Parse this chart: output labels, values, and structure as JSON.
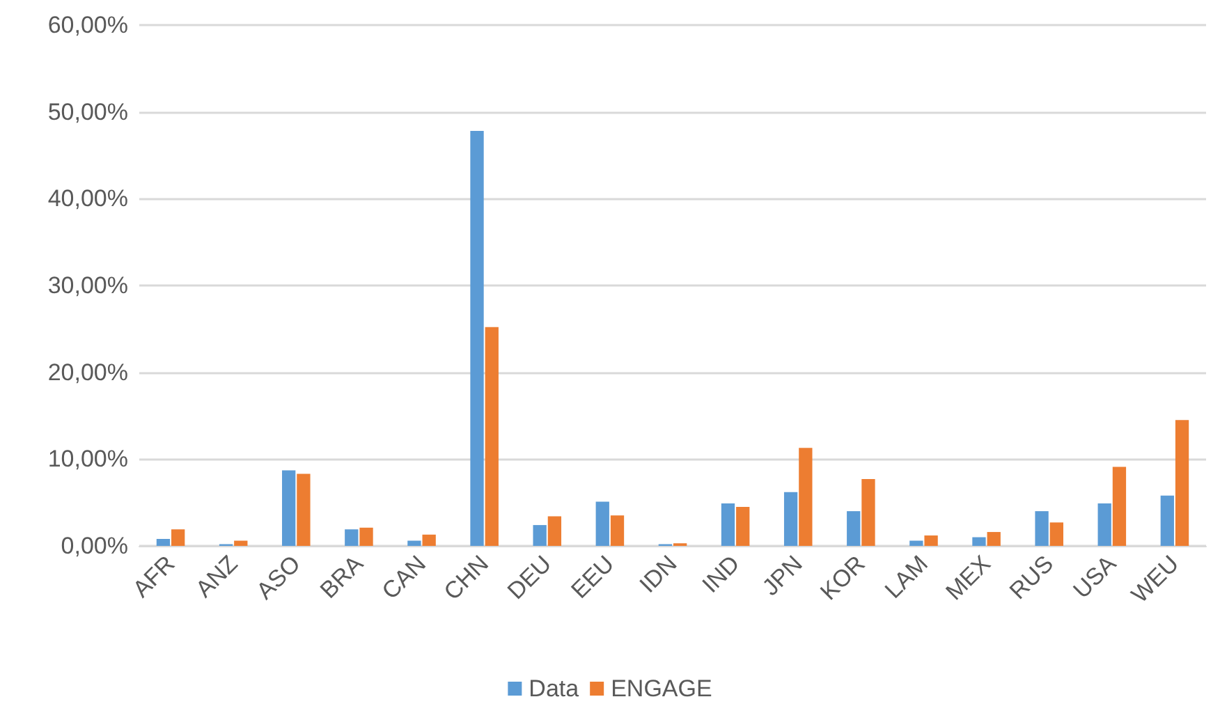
{
  "chart_data": {
    "type": "bar",
    "categories": [
      "AFR",
      "ANZ",
      "ASO",
      "BRA",
      "CAN",
      "CHN",
      "DEU",
      "EEU",
      "IDN",
      "IND",
      "JPN",
      "KOR",
      "LAM",
      "MEX",
      "RUS",
      "USA",
      "WEU"
    ],
    "series": [
      {
        "name": "Data",
        "color": "#5b9bd5",
        "values": [
          0.8,
          0.2,
          8.7,
          1.9,
          0.6,
          47.8,
          2.4,
          5.1,
          0.2,
          4.9,
          6.2,
          4.0,
          0.6,
          1.0,
          4.0,
          4.9,
          5.8
        ]
      },
      {
        "name": "ENGAGE",
        "color": "#ed7d31",
        "values": [
          1.9,
          0.6,
          8.3,
          2.1,
          1.3,
          25.2,
          3.4,
          3.5,
          0.3,
          4.5,
          11.3,
          7.7,
          1.2,
          1.6,
          2.7,
          9.1,
          14.5
        ]
      }
    ],
    "ylim": [
      0,
      60
    ],
    "yticks": [
      {
        "value": 0,
        "label": "0,00%"
      },
      {
        "value": 10,
        "label": "10,00%"
      },
      {
        "value": 20,
        "label": "20,00%"
      },
      {
        "value": 30,
        "label": "30,00%"
      },
      {
        "value": 40,
        "label": "40,00%"
      },
      {
        "value": 50,
        "label": "50,00%"
      },
      {
        "value": 60,
        "label": "60,00%"
      }
    ],
    "grid": "y",
    "legend": "bottom"
  }
}
